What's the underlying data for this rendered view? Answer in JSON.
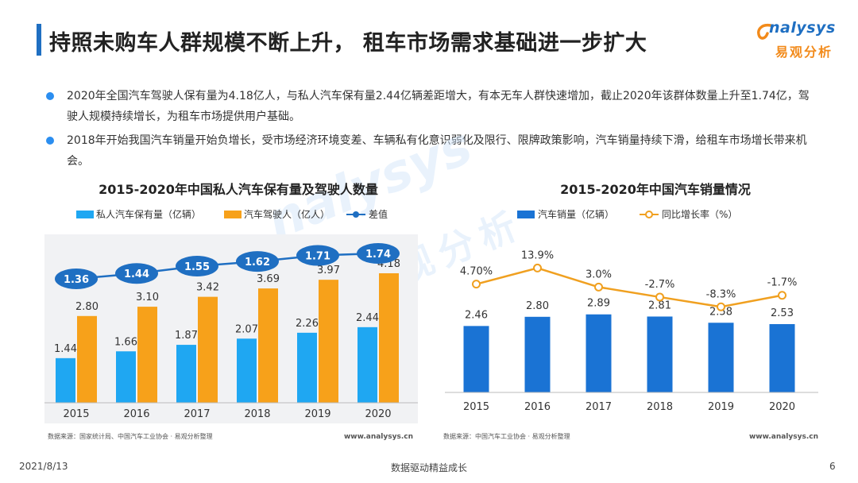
{
  "header": {
    "title": "持照未购车人群规模不断上升， 租车市场需求基础进一步扩大",
    "logo_word": "nalysys",
    "logo_sub": "易观分析"
  },
  "bullets": [
    "2020年全国汽车驾驶人保有量为4.18亿人，与私人汽车保有量2.44亿辆差距增大，有本无车人群快速增加，截止2020年该群体数量上升至1.74亿，驾驶人规模持续增长，为租车市场提供用户基础。",
    "2018年开始我国汽车销量开始负增长，受市场经济环境变差、车辆私有化意识弱化及限行、限牌政策影响，汽车销量持续下滑，给租车市场增长带来机会。"
  ],
  "watermark": {
    "word": "nalysys",
    "sub": "易观分析"
  },
  "colors": {
    "accent": "#1f6fc2",
    "bar_light_blue": "#1fa7f2",
    "bar_orange": "#f7a11a",
    "line_blue": "#1f6fc2",
    "bar_dark_blue": "#1a73d4",
    "line_orange": "#f0a020"
  },
  "chart_data": [
    {
      "type": "bar",
      "title": "2015-2020年中国私人汽车保有量及驾驶人数量",
      "categories": [
        "2015",
        "2016",
        "2017",
        "2018",
        "2019",
        "2020"
      ],
      "series": [
        {
          "name": "私人汽车保有量（亿辆）",
          "type": "bar",
          "values": [
            1.44,
            1.66,
            1.87,
            2.07,
            2.26,
            2.44
          ]
        },
        {
          "name": "汽车驾驶人（亿人）",
          "type": "bar",
          "values": [
            2.8,
            3.1,
            3.42,
            3.69,
            3.97,
            4.18
          ]
        },
        {
          "name": "差值",
          "type": "line",
          "values": [
            1.36,
            1.44,
            1.55,
            1.62,
            1.71,
            1.74
          ]
        }
      ],
      "value_labels": {
        "bars_a": [
          "1.44",
          "1.66",
          "1.87",
          "2.07",
          "2.26",
          "2.44"
        ],
        "bars_b": [
          "2.80",
          "3.10",
          "3.42",
          "3.69",
          "3.97",
          "4.18"
        ],
        "line": [
          "1.36",
          "1.44",
          "1.55",
          "1.62",
          "1.71",
          "1.74"
        ]
      },
      "legend_position": "top",
      "source": "数据来源：国家统计局、中国汽车工业协会 · 易观分析整理",
      "website": "www.analysys.cn"
    },
    {
      "type": "bar",
      "title": "2015-2020年中国汽车销量情况",
      "categories": [
        "2015",
        "2016",
        "2017",
        "2018",
        "2019",
        "2020"
      ],
      "series": [
        {
          "name": "汽车销量（亿辆）",
          "type": "bar",
          "values": [
            2.46,
            2.8,
            2.89,
            2.81,
            2.58,
            2.53
          ]
        },
        {
          "name": "同比增长率（%）",
          "type": "line",
          "values": [
            4.7,
            13.9,
            3.0,
            -2.7,
            -8.3,
            -1.7
          ]
        }
      ],
      "value_labels": {
        "bars": [
          "2.46",
          "2.80",
          "2.89",
          "2.81",
          "2.58",
          "2.53"
        ],
        "line": [
          "4.70%",
          "13.9%",
          "3.0%",
          "-2.7%",
          "-8.3%",
          "-1.7%"
        ]
      },
      "legend_position": "top",
      "source": "数据来源：中国汽车工业协会 · 易观分析整理",
      "website": "www.analysys.cn"
    }
  ],
  "footer": {
    "date": "2021/8/13",
    "slogan": "数据驱动精益成长",
    "page": "6"
  }
}
